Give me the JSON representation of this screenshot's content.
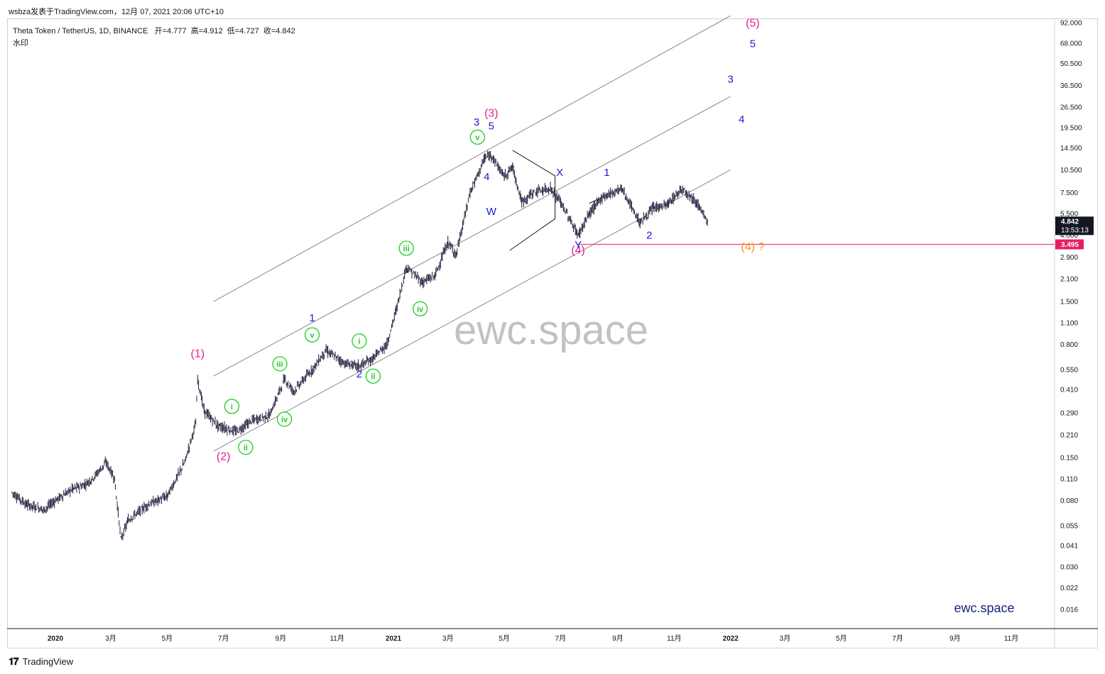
{
  "header": {
    "published": "wsbza发表于TradingView.com，12月 07, 2021 20:06 UTC+10",
    "symbol": "Theta Token / TetherUS, 1D, BINANCE",
    "ohlc": {
      "open_label": "开",
      "open": "4.777",
      "high_label": "高",
      "high": "4.912",
      "low_label": "低",
      "low": "4.727",
      "close_label": "收",
      "close": "4.842"
    },
    "watermark_label": "水印"
  },
  "watermark_text": "ewc.space",
  "brand_text": "ewc.space",
  "footer": {
    "brand": "TradingView",
    "logo_icon": "tradingview-logo-icon"
  },
  "price_labels": {
    "last_price": "4.842",
    "countdown": "13:53:13",
    "level": "3.495",
    "last_color": "#131722",
    "level_color": "#e91e63"
  },
  "colors": {
    "wave_major": "#e91e8c",
    "wave_minor": "#1a1ad6",
    "wave_sub": "#22cc22",
    "forecast": "#f7931a",
    "channel": "#8a8a8a",
    "candles": "#1c1c3a"
  },
  "chart_data": {
    "type": "candlestick",
    "title": "Theta Token / TetherUS, 1D, BINANCE",
    "y_scale": "log",
    "ylim": [
      0.012,
      110
    ],
    "x_ticks": [
      "2020",
      "3月",
      "5月",
      "7月",
      "9月",
      "11月",
      "2021",
      "3月",
      "5月",
      "7月",
      "9月",
      "11月",
      "2022",
      "3月",
      "5月",
      "7月",
      "9月",
      "11月"
    ],
    "y_ticks": [
      "92.000",
      "68.000",
      "50.500",
      "36.500",
      "26.500",
      "19.500",
      "14.500",
      "10.500",
      "7.500",
      "5.500",
      "4.000",
      "2.900",
      "2.100",
      "1.500",
      "1.100",
      "0.800",
      "0.550",
      "0.410",
      "0.290",
      "0.210",
      "0.150",
      "0.110",
      "0.080",
      "0.055",
      "0.041",
      "0.030",
      "0.022",
      "0.016"
    ],
    "anchor_prices": [
      [
        "2019-11-15",
        0.09
      ],
      [
        "2019-12-01",
        0.075
      ],
      [
        "2019-12-20",
        0.07
      ],
      [
        "2020-01-01",
        0.08
      ],
      [
        "2020-01-20",
        0.095
      ],
      [
        "2020-02-01",
        0.1
      ],
      [
        "2020-02-10",
        0.11
      ],
      [
        "2020-02-25",
        0.14
      ],
      [
        "2020-03-05",
        0.11
      ],
      [
        "2020-03-12",
        0.045
      ],
      [
        "2020-03-20",
        0.06
      ],
      [
        "2020-04-10",
        0.075
      ],
      [
        "2020-05-01",
        0.085
      ],
      [
        "2020-05-20",
        0.14
      ],
      [
        "2020-06-01",
        0.25
      ],
      [
        "2020-06-03",
        0.48
      ],
      [
        "2020-06-10",
        0.3
      ],
      [
        "2020-06-25",
        0.24
      ],
      [
        "2020-07-15",
        0.22
      ],
      [
        "2020-08-01",
        0.26
      ],
      [
        "2020-08-20",
        0.28
      ],
      [
        "2020-09-05",
        0.48
      ],
      [
        "2020-09-15",
        0.4
      ],
      [
        "2020-10-05",
        0.55
      ],
      [
        "2020-10-20",
        0.73
      ],
      [
        "2020-11-10",
        0.6
      ],
      [
        "2020-11-25",
        0.58
      ],
      [
        "2020-12-10",
        0.65
      ],
      [
        "2020-12-25",
        0.8
      ],
      [
        "2021-01-05",
        1.4
      ],
      [
        "2021-01-15",
        2.5
      ],
      [
        "2021-02-01",
        2.0
      ],
      [
        "2021-02-15",
        2.2
      ],
      [
        "2021-03-01",
        3.6
      ],
      [
        "2021-03-10",
        3.0
      ],
      [
        "2021-03-25",
        7.5
      ],
      [
        "2021-04-10",
        12.5
      ],
      [
        "2021-04-17",
        13.0
      ],
      [
        "2021-05-01",
        9.5
      ],
      [
        "2021-05-10",
        11.0
      ],
      [
        "2021-05-20",
        6.5
      ],
      [
        "2021-06-01",
        7.5
      ],
      [
        "2021-06-20",
        8.0
      ],
      [
        "2021-07-01",
        6.5
      ],
      [
        "2021-07-20",
        4.0
      ],
      [
        "2021-08-01",
        5.5
      ],
      [
        "2021-08-15",
        7.0
      ],
      [
        "2021-09-05",
        8.0
      ],
      [
        "2021-09-25",
        4.8
      ],
      [
        "2021-10-10",
        6.0
      ],
      [
        "2021-10-25",
        6.3
      ],
      [
        "2021-11-10",
        8.0
      ],
      [
        "2021-11-25",
        6.5
      ],
      [
        "2021-12-07",
        4.84
      ]
    ],
    "channel_lines": [
      {
        "start": [
          "2020-06-20",
          1.5
        ],
        "end": [
          "2022-01-01",
          102
        ]
      },
      {
        "start": [
          "2020-06-20",
          0.5
        ],
        "end": [
          "2022-01-01",
          31
        ]
      },
      {
        "start": [
          "2020-06-20",
          0.165
        ],
        "end": [
          "2022-01-01",
          10.5
        ]
      }
    ],
    "triangles": [
      [
        [
          "2021-05-10",
          14.0
        ],
        [
          "2021-06-25",
          9.6
        ],
        [
          "2021-06-25",
          5.1
        ],
        [
          "2021-05-07",
          3.2
        ]
      ],
      [
        [
          "2021-08-01",
          6.4
        ],
        [
          "2021-08-15",
          7.0
        ]
      ]
    ],
    "horizontal_levels": [
      {
        "value": 3.495,
        "from": "2021-07-20"
      }
    ],
    "wave_labels": [
      {
        "text": "(1)",
        "date": "2020-06-03",
        "price": 0.66,
        "kind": "major"
      },
      {
        "text": "(2)",
        "date": "2020-07-01",
        "price": 0.145,
        "kind": "major"
      },
      {
        "text": "(3)",
        "date": "2021-04-17",
        "price": 23.0,
        "kind": "major"
      },
      {
        "text": "(4)",
        "date": "2021-07-20",
        "price": 3.05,
        "kind": "major"
      },
      {
        "text": "(5)",
        "date": "2022-01-25",
        "price": 87.0,
        "kind": "major"
      },
      {
        "text": "(4) ?",
        "date": "2022-01-25",
        "price": 3.2,
        "kind": "forecast"
      },
      {
        "text": "1",
        "date": "2020-10-05",
        "price": 1.12,
        "kind": "minor"
      },
      {
        "text": "2",
        "date": "2020-11-25",
        "price": 0.49,
        "kind": "minor"
      },
      {
        "text": "3",
        "date": "2021-04-01",
        "price": 20.2,
        "kind": "minor"
      },
      {
        "text": "5",
        "date": "2021-04-17",
        "price": 19.0,
        "kind": "minor"
      },
      {
        "text": "4",
        "date": "2021-04-12",
        "price": 9.0,
        "kind": "minor"
      },
      {
        "text": "W",
        "date": "2021-04-17",
        "price": 5.4,
        "kind": "minor"
      },
      {
        "text": "X",
        "date": "2021-06-30",
        "price": 9.6,
        "kind": "minor"
      },
      {
        "text": "Y",
        "date": "2021-07-20",
        "price": 3.3,
        "kind": "minor"
      },
      {
        "text": "1",
        "date": "2021-08-20",
        "price": 9.6,
        "kind": "minor"
      },
      {
        "text": "2",
        "date": "2021-10-05",
        "price": 3.8,
        "kind": "minor"
      },
      {
        "text": "3",
        "date": "2022-01-01",
        "price": 38.0,
        "kind": "minor"
      },
      {
        "text": "4",
        "date": "2022-01-13",
        "price": 21.0,
        "kind": "minor"
      },
      {
        "text": "5",
        "date": "2022-01-25",
        "price": 64.0,
        "kind": "minor"
      }
    ],
    "sub_wave_labels": [
      {
        "text": "i",
        "date": "2020-07-10",
        "price": 0.32
      },
      {
        "text": "ii",
        "date": "2020-07-25",
        "price": 0.175
      },
      {
        "text": "iii",
        "date": "2020-08-31",
        "price": 0.6
      },
      {
        "text": "iv",
        "date": "2020-09-05",
        "price": 0.265
      },
      {
        "text": "v",
        "date": "2020-10-05",
        "price": 0.92
      },
      {
        "text": "i",
        "date": "2020-11-25",
        "price": 0.84
      },
      {
        "text": "ii",
        "date": "2020-12-10",
        "price": 0.5
      },
      {
        "text": "iii",
        "date": "2021-01-15",
        "price": 3.3
      },
      {
        "text": "iv",
        "date": "2021-01-30",
        "price": 1.35
      },
      {
        "text": "v",
        "date": "2021-04-02",
        "price": 17.0
      }
    ]
  }
}
